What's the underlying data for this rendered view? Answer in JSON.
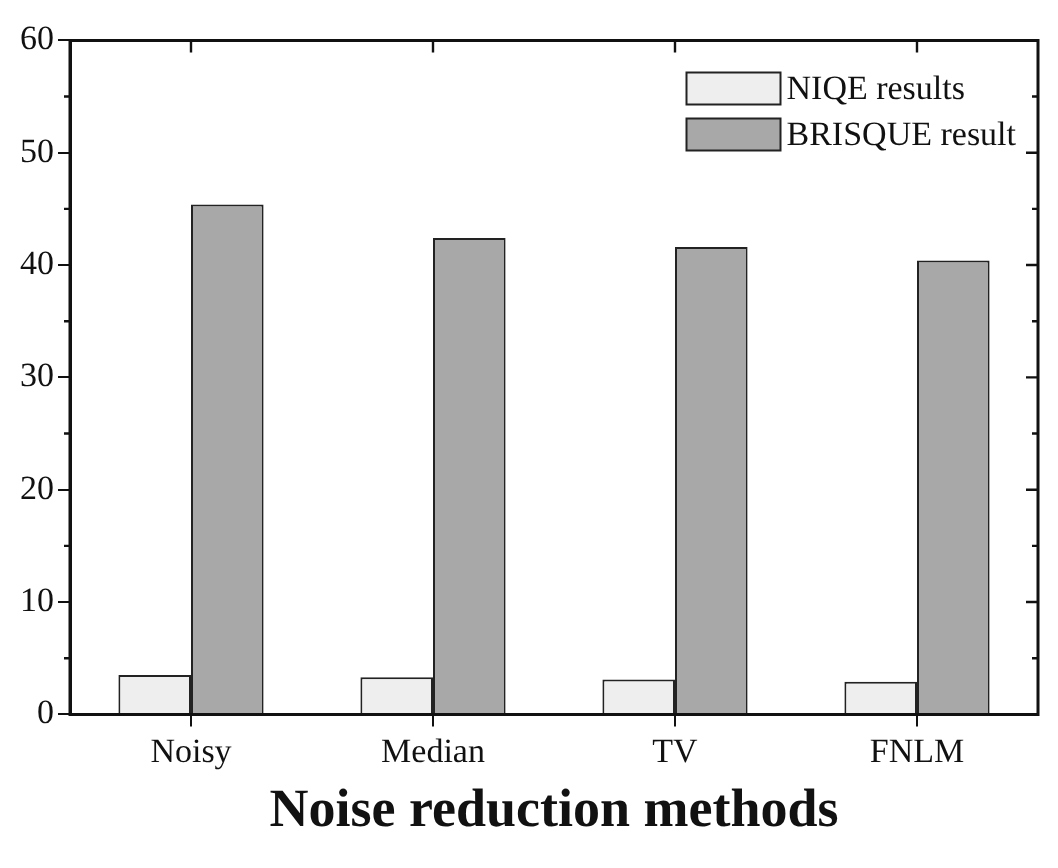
{
  "chart_data": {
    "type": "bar",
    "xlabel": "Noise reduction methods",
    "categories": [
      "Noisy",
      "Median",
      "TV",
      "FNLM"
    ],
    "series": [
      {
        "name": "NIQE results",
        "color": "#eeeeee",
        "values": [
          3.5,
          3.3,
          3.1,
          2.9
        ]
      },
      {
        "name": "BRISQUE result",
        "color": "#a8a8a8",
        "values": [
          45.4,
          42.4,
          41.6,
          40.4
        ]
      }
    ],
    "ylim": [
      0,
      60
    ],
    "yticks": [
      0,
      10,
      20,
      30,
      40,
      50,
      60
    ],
    "grid": false,
    "legend": "top right"
  }
}
